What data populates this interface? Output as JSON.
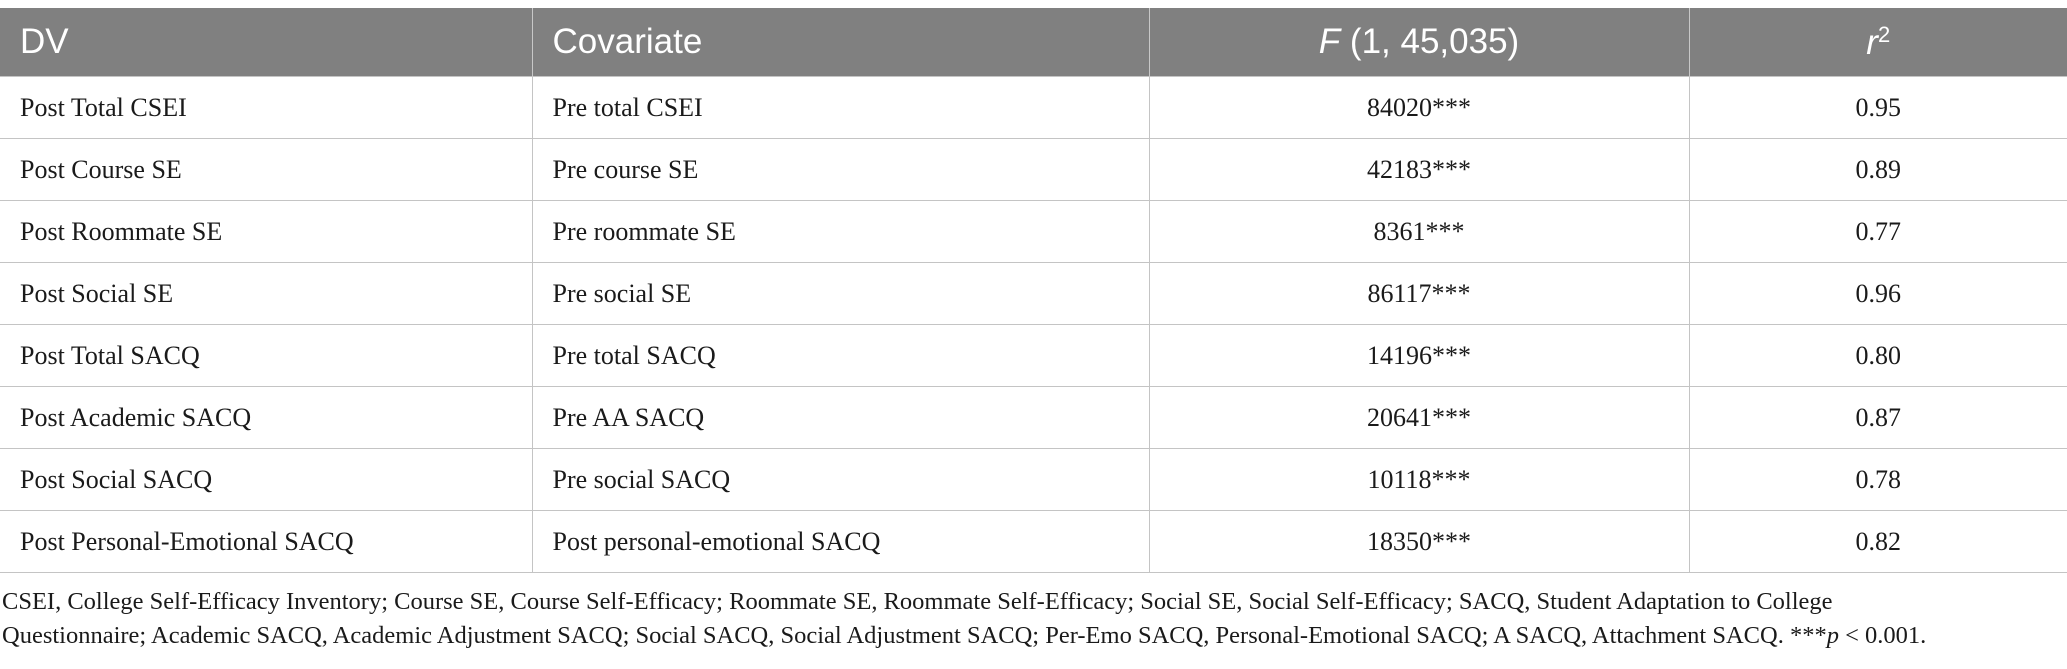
{
  "table": {
    "headers": {
      "dv": "DV",
      "covariate": "Covariate",
      "f_italic": "F",
      "f_rest": " (1, 45,035)",
      "r_italic": "r",
      "r_sup": "2"
    },
    "rows": [
      {
        "dv": "Post Total CSEI",
        "covariate": "Pre total CSEI",
        "f": "84020***",
        "r2": "0.95"
      },
      {
        "dv": "Post Course SE",
        "covariate": "Pre course SE",
        "f": "42183***",
        "r2": "0.89"
      },
      {
        "dv": "Post Roommate SE",
        "covariate": "Pre roommate SE",
        "f": "8361***",
        "r2": "0.77"
      },
      {
        "dv": "Post Social SE",
        "covariate": "Pre social SE",
        "f": "86117***",
        "r2": "0.96"
      },
      {
        "dv": "Post Total SACQ",
        "covariate": "Pre total SACQ",
        "f": "14196***",
        "r2": "0.80"
      },
      {
        "dv": "Post Academic SACQ",
        "covariate": "Pre AA SACQ",
        "f": "20641***",
        "r2": "0.87"
      },
      {
        "dv": "Post Social SACQ",
        "covariate": "Pre social SACQ",
        "f": "10118***",
        "r2": "0.78"
      },
      {
        "dv": "Post Personal-Emotional SACQ",
        "covariate": "Post personal-emotional SACQ",
        "f": "18350***",
        "r2": "0.82"
      }
    ]
  },
  "footnote": {
    "line1": "CSEI, College Self-Efficacy Inventory; Course SE, Course Self-Efficacy; Roommate SE, Roommate Self-Efficacy; Social SE, Social Self-Efficacy; SACQ, Student Adaptation to College",
    "line2_main": "Questionnaire; Academic SACQ, Academic Adjustment SACQ; Social SACQ, Social Adjustment SACQ; Per-Emo SACQ, Personal-Emotional SACQ; A SACQ, Attachment SACQ. ***",
    "p_italic": "p",
    "p_tail": " < 0.001."
  },
  "colors": {
    "header_bg": "#808080",
    "header_text": "#ffffff",
    "grid": "#c4c4c4"
  }
}
